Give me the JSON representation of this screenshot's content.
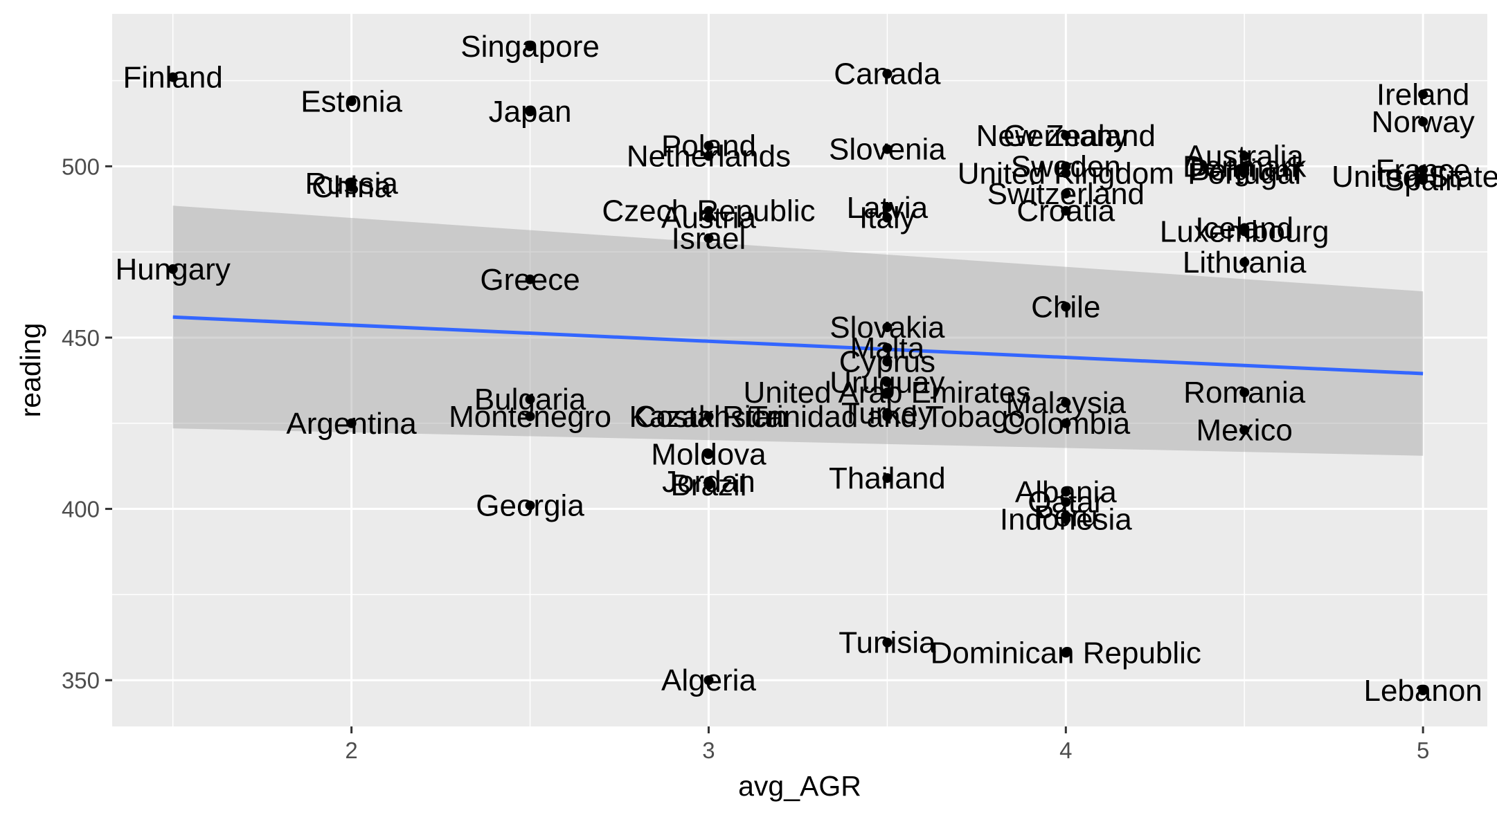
{
  "chart_data": {
    "type": "scatter",
    "xlabel": "avg_AGR",
    "ylabel": "reading",
    "xlim": [
      1.33,
      5.18
    ],
    "ylim": [
      336.5,
      544.5
    ],
    "x_ticks": [
      2,
      3,
      4,
      5
    ],
    "y_ticks": [
      350,
      400,
      450,
      500
    ],
    "grid": true,
    "point_color": "#000000",
    "trend": {
      "method": "linear",
      "color": "#3366ff",
      "band_color": "#999999",
      "x": [
        1.5,
        5.0
      ],
      "y": [
        456.0,
        439.5
      ],
      "ci_lower": [
        423.5,
        415.5
      ],
      "ci_upper": [
        488.5,
        463.5
      ]
    },
    "points": [
      {
        "label": "Finland",
        "x": 1.5,
        "y": 526
      },
      {
        "label": "Hungary",
        "x": 1.5,
        "y": 470
      },
      {
        "label": "Estonia",
        "x": 2.0,
        "y": 519
      },
      {
        "label": "Russia",
        "x": 2.0,
        "y": 495
      },
      {
        "label": "China",
        "x": 2.0,
        "y": 494
      },
      {
        "label": "Argentina",
        "x": 2.0,
        "y": 425
      },
      {
        "label": "Singapore",
        "x": 2.5,
        "y": 535
      },
      {
        "label": "Japan",
        "x": 2.5,
        "y": 516
      },
      {
        "label": "Greece",
        "x": 2.5,
        "y": 467
      },
      {
        "label": "Bulgaria",
        "x": 2.5,
        "y": 432
      },
      {
        "label": "Montenegro",
        "x": 2.5,
        "y": 427
      },
      {
        "label": "Georgia",
        "x": 2.5,
        "y": 401
      },
      {
        "label": "Poland",
        "x": 3.0,
        "y": 506
      },
      {
        "label": "Netherlands",
        "x": 3.0,
        "y": 503
      },
      {
        "label": "Czech Republic",
        "x": 3.0,
        "y": 487
      },
      {
        "label": "Austria",
        "x": 3.0,
        "y": 485
      },
      {
        "label": "Israel",
        "x": 3.0,
        "y": 479
      },
      {
        "label": "Kazakhstan",
        "x": 3.0,
        "y": 427
      },
      {
        "label": "Costa Rica",
        "x": 3.0,
        "y": 427
      },
      {
        "label": "Moldova",
        "x": 3.0,
        "y": 416
      },
      {
        "label": "Jordan",
        "x": 3.0,
        "y": 408
      },
      {
        "label": "Brazil",
        "x": 3.0,
        "y": 407
      },
      {
        "label": "Algeria",
        "x": 3.0,
        "y": 350
      },
      {
        "label": "Canada",
        "x": 3.5,
        "y": 527
      },
      {
        "label": "Slovenia",
        "x": 3.5,
        "y": 505
      },
      {
        "label": "Latvia",
        "x": 3.5,
        "y": 488
      },
      {
        "label": "Italy",
        "x": 3.5,
        "y": 485
      },
      {
        "label": "Slovakia",
        "x": 3.5,
        "y": 453
      },
      {
        "label": "Malta",
        "x": 3.5,
        "y": 447
      },
      {
        "label": "Cyprus",
        "x": 3.5,
        "y": 443
      },
      {
        "label": "Uruguay",
        "x": 3.5,
        "y": 437
      },
      {
        "label": "United Arab Emirates",
        "x": 3.5,
        "y": 434
      },
      {
        "label": "Trinidad and Tobago",
        "x": 3.5,
        "y": 427
      },
      {
        "label": "Turkey",
        "x": 3.5,
        "y": 428
      },
      {
        "label": "Thailand",
        "x": 3.5,
        "y": 409
      },
      {
        "label": "Tunisia",
        "x": 3.5,
        "y": 361
      },
      {
        "label": "New Zealand",
        "x": 4.0,
        "y": 509
      },
      {
        "label": "Germany",
        "x": 4.0,
        "y": 509
      },
      {
        "label": "Sweden",
        "x": 4.0,
        "y": 500
      },
      {
        "label": "United Kingdom",
        "x": 4.0,
        "y": 498
      },
      {
        "label": "Switzerland",
        "x": 4.0,
        "y": 492
      },
      {
        "label": "Croatia",
        "x": 4.0,
        "y": 487
      },
      {
        "label": "Chile",
        "x": 4.0,
        "y": 459
      },
      {
        "label": "Malaysia",
        "x": 4.0,
        "y": 431
      },
      {
        "label": "Colombia",
        "x": 4.0,
        "y": 425
      },
      {
        "label": "Albania",
        "x": 4.0,
        "y": 405
      },
      {
        "label": "Qatar",
        "x": 4.0,
        "y": 402
      },
      {
        "label": "Peru",
        "x": 4.0,
        "y": 398
      },
      {
        "label": "Indonesia",
        "x": 4.0,
        "y": 397
      },
      {
        "label": "Dominican Republic",
        "x": 4.0,
        "y": 358
      },
      {
        "label": "Australia",
        "x": 4.5,
        "y": 503
      },
      {
        "label": "Denmark",
        "x": 4.5,
        "y": 500
      },
      {
        "label": "Belgium",
        "x": 4.5,
        "y": 499
      },
      {
        "label": "Portugal",
        "x": 4.5,
        "y": 498
      },
      {
        "label": "Luxembourg",
        "x": 4.5,
        "y": 481
      },
      {
        "label": "Iceland",
        "x": 4.5,
        "y": 482
      },
      {
        "label": "Lithuania",
        "x": 4.5,
        "y": 472
      },
      {
        "label": "Romania",
        "x": 4.5,
        "y": 434
      },
      {
        "label": "Mexico",
        "x": 4.5,
        "y": 423
      },
      {
        "label": "Ireland",
        "x": 5.0,
        "y": 521
      },
      {
        "label": "Norway",
        "x": 5.0,
        "y": 513
      },
      {
        "label": "France",
        "x": 5.0,
        "y": 499
      },
      {
        "label": "United States",
        "x": 5.0,
        "y": 497
      },
      {
        "label": "Spain",
        "x": 5.0,
        "y": 496
      },
      {
        "label": "Lebanon",
        "x": 5.0,
        "y": 347
      }
    ]
  }
}
